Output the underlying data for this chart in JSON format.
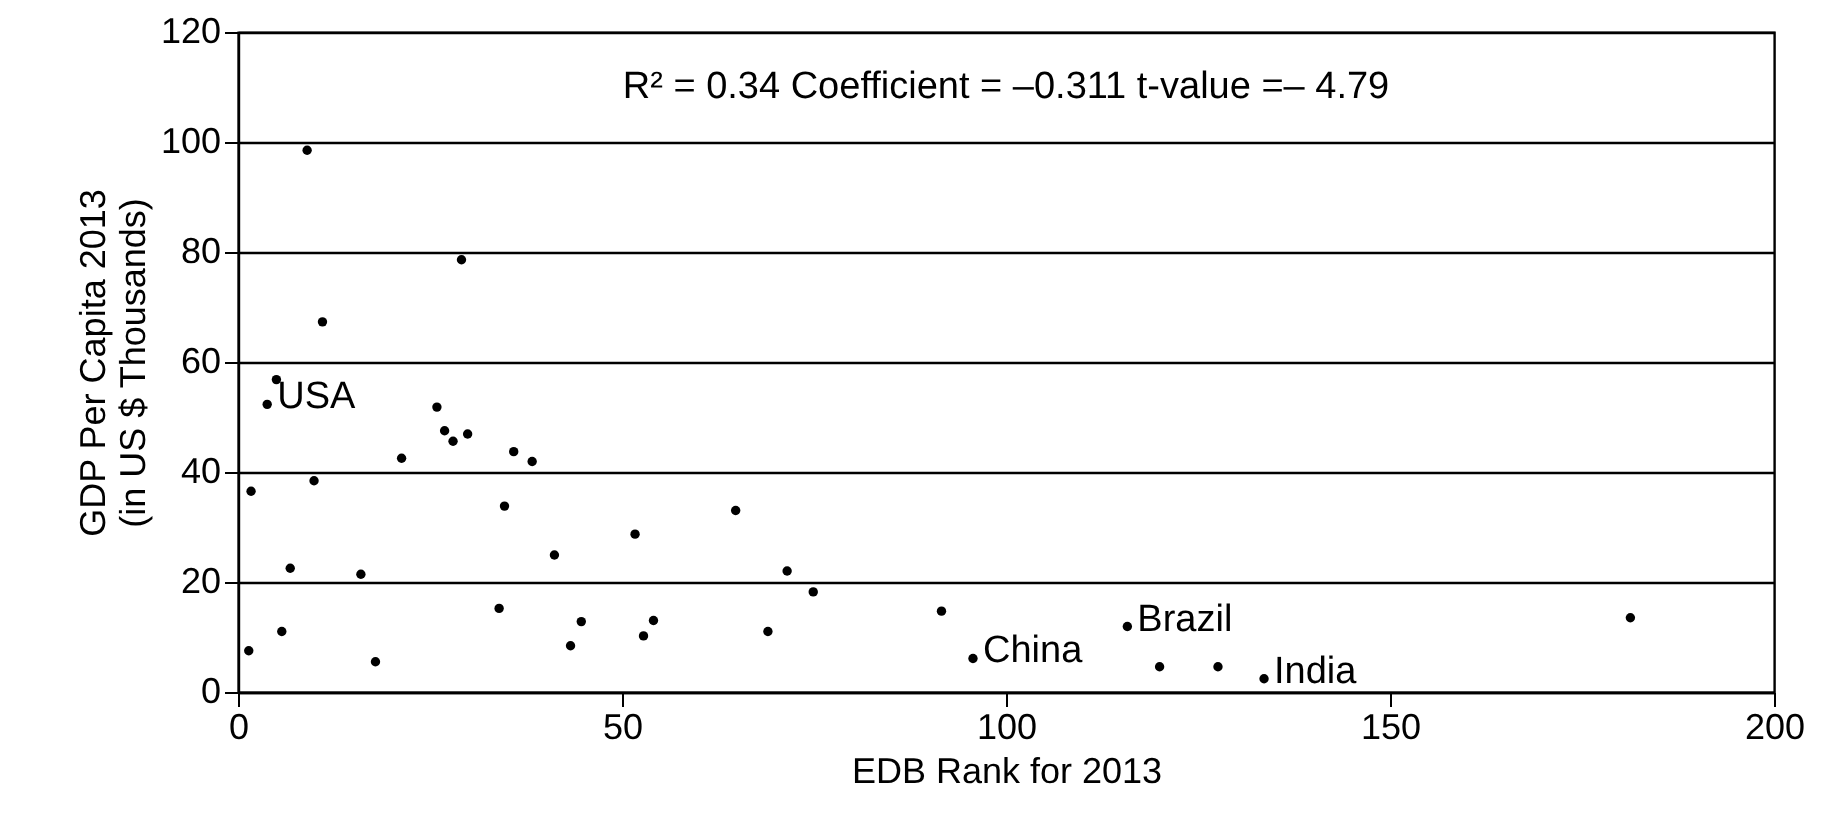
{
  "chart_data": {
    "type": "scatter",
    "xlabel": "EDB Rank for 2013",
    "ylabel": "GDP Per Capita 2013\n(in US $ Thousands)",
    "x": [
      1.4,
      1.7,
      3.8,
      5.0,
      5.7,
      6.8,
      9.0,
      9.9,
      11.0,
      16.0,
      17.9,
      21.3,
      25.9,
      26.9,
      28.0,
      29.1,
      29.9,
      34.0,
      34.7,
      35.9,
      38.3,
      41.2,
      43.3,
      44.7,
      51.7,
      52.8,
      54.1,
      64.8,
      69.0,
      71.5,
      74.9,
      91.6,
      95.7,
      115.8,
      120.0,
      127.6,
      133.6,
      181.3
    ],
    "series": [
      {
        "color": "#000000",
        "values": [
          7.5,
          36.5,
          52.3,
          56.8,
          11.0,
          22.5,
          98.5,
          38.4,
          67.3,
          21.4,
          5.5,
          42.5,
          51.8,
          47.5,
          45.6,
          78.6,
          46.9,
          15.2,
          33.8,
          43.7,
          41.9,
          24.9,
          8.4,
          12.8,
          28.7,
          10.2,
          13.0,
          33.0,
          11.0,
          22.0,
          18.2,
          14.7,
          6.1,
          11.9,
          4.6,
          4.6,
          2.4,
          13.5
        ]
      }
    ],
    "xlim": [
      0,
      200
    ],
    "xticks": [
      0,
      50,
      100,
      150,
      200
    ],
    "ylim": [
      0,
      120
    ],
    "yticks": [
      0,
      20,
      40,
      60,
      80,
      100,
      120
    ],
    "grid": "y",
    "marker": "circle",
    "annotations": [
      "R² = 0.34 Coefficient = –0.311 t-value =– 4.79",
      {
        "text": "USA",
        "x": 3.8,
        "y": 52.3
      },
      {
        "text": "China",
        "x": 95.7,
        "y": 6.1
      },
      {
        "text": "Brazil",
        "x": 115.8,
        "y": 11.9
      },
      {
        "text": "India",
        "x": 133.6,
        "y": 2.4
      }
    ]
  }
}
